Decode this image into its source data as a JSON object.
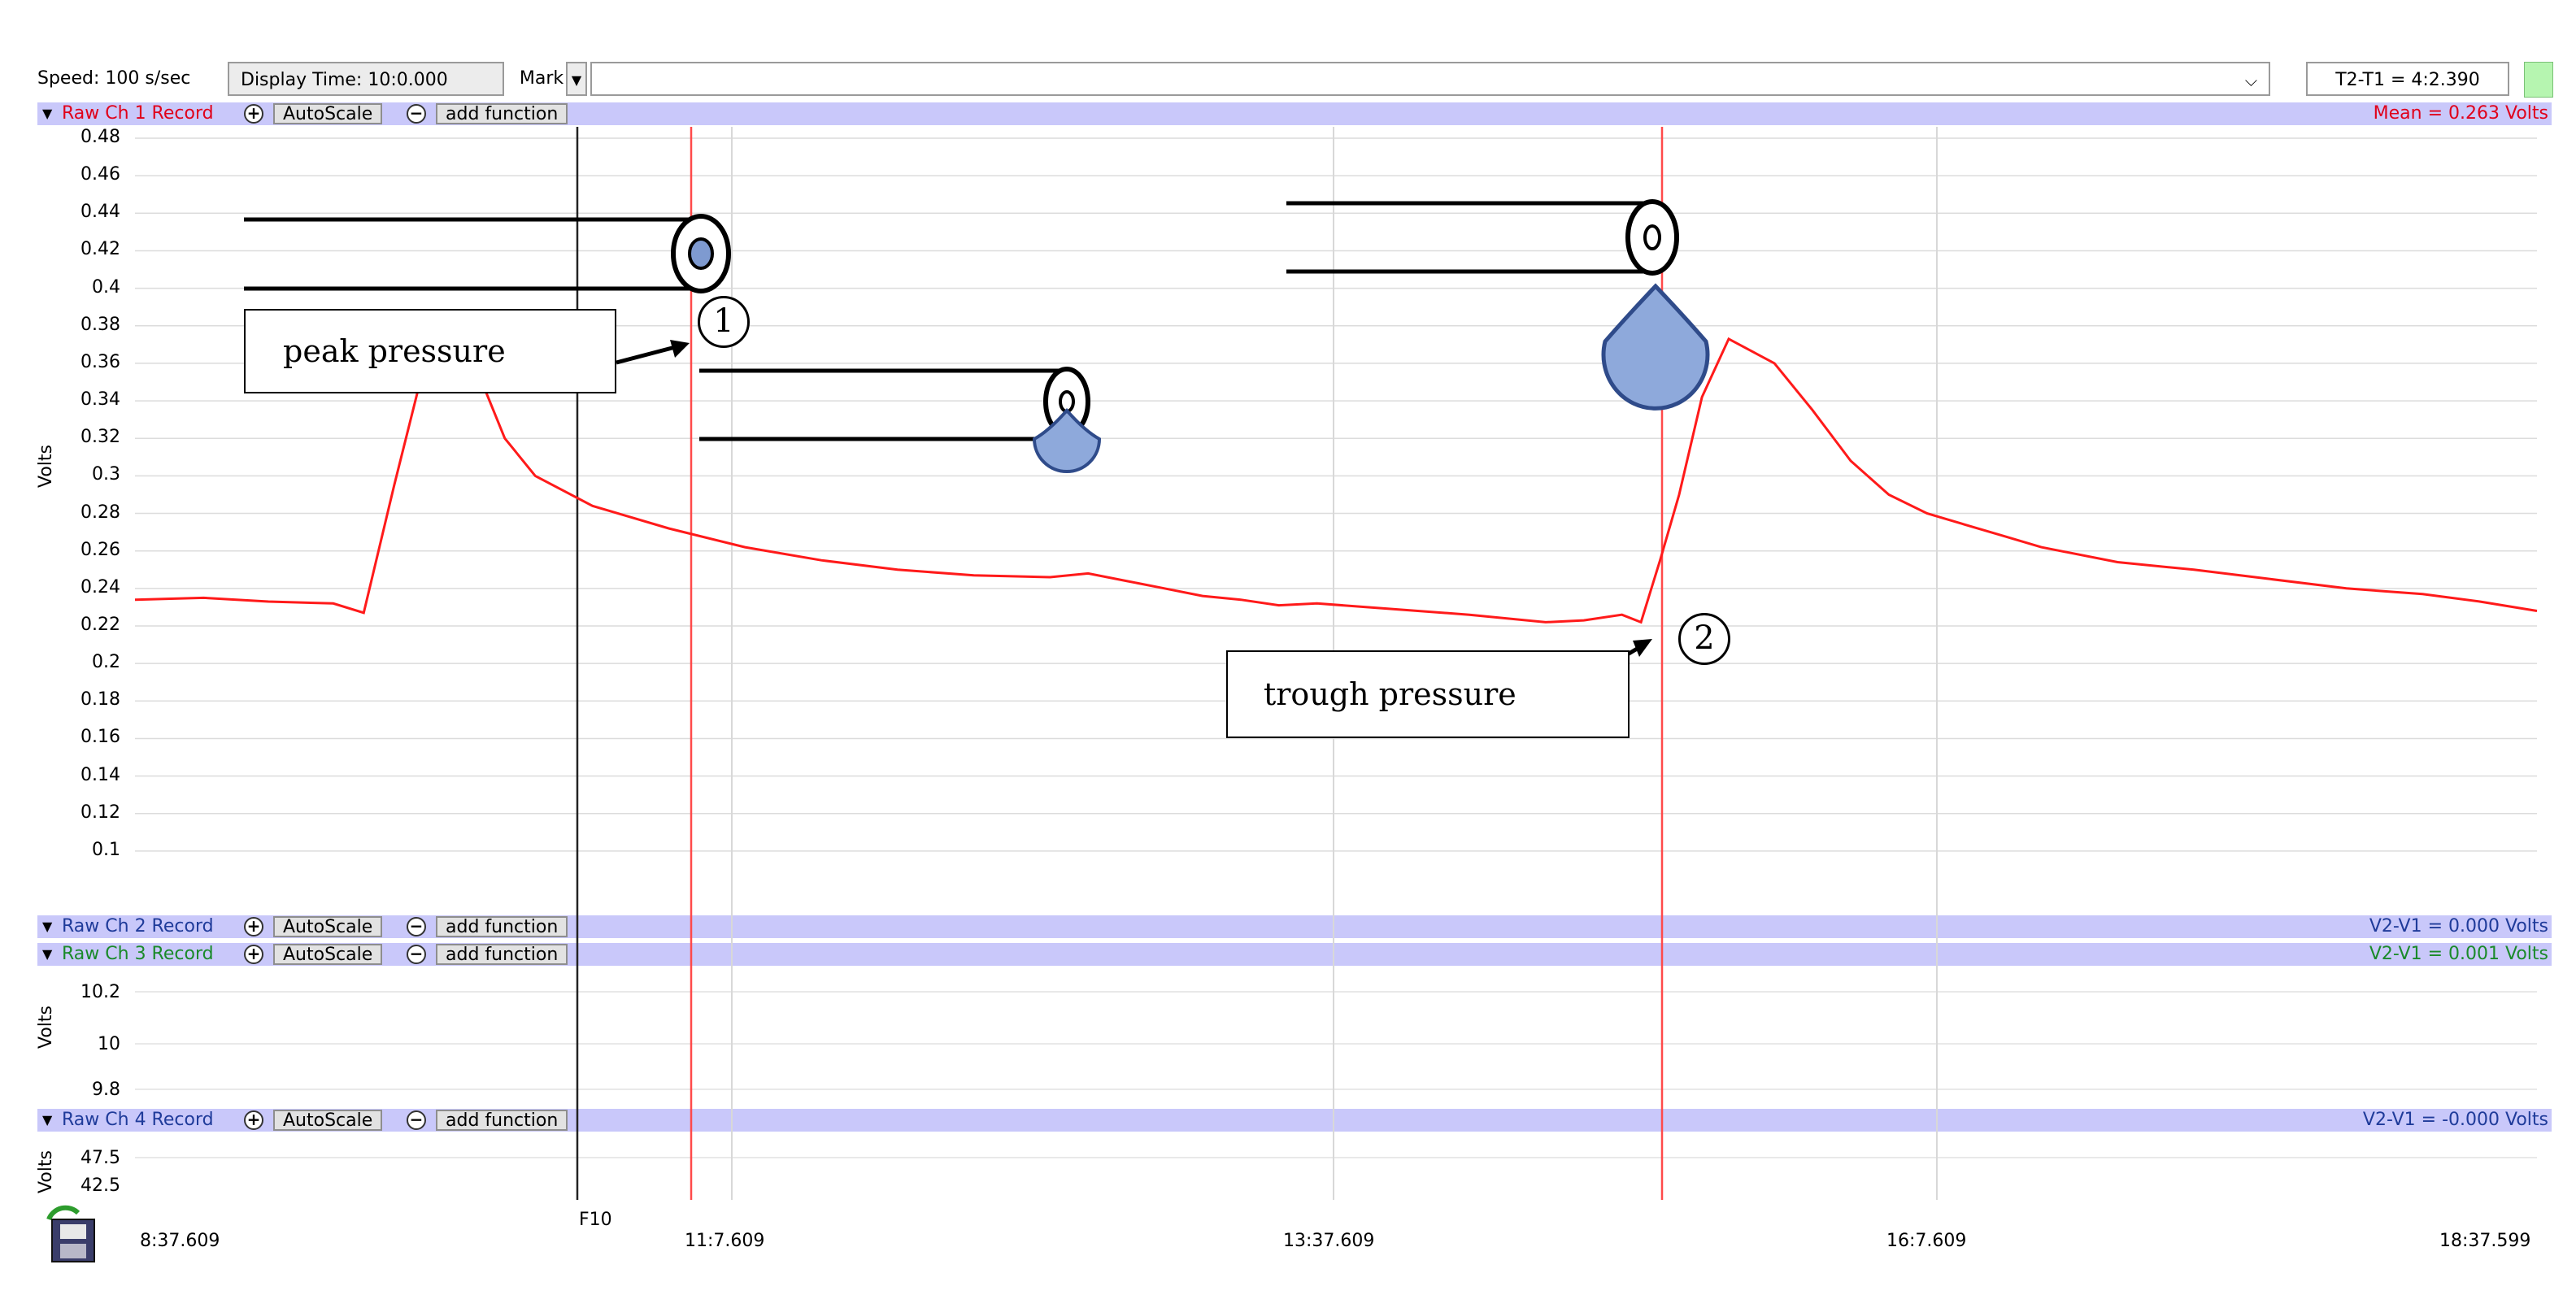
{
  "toolbar": {
    "speed": "Speed: 100 s/sec",
    "display_time": "Display Time: 10:0.000",
    "mark": "Mark",
    "mark_dropdown_icon": "caret-down-icon",
    "comment_dropdown_icon": "chevron-down-icon",
    "t2t1": "T2-T1 = 4:2.390",
    "status_color": "#b6f5b0"
  },
  "channels": [
    {
      "label": "Raw Ch 1 Record",
      "label_color": "#e0001a",
      "autoscale": "AutoScale",
      "add_function": "add function",
      "readout": "Mean = 0.263 Volts",
      "readout_color": "#e0001a"
    },
    {
      "label": "Raw Ch 2 Record",
      "label_color": "#1f3b9a",
      "autoscale": "AutoScale",
      "add_function": "add function",
      "readout": "V2-V1 = 0.000 Volts",
      "readout_color": "#1f3b9a"
    },
    {
      "label": "Raw Ch 3 Record",
      "label_color": "#1a8a2a",
      "autoscale": "AutoScale",
      "add_function": "add function",
      "readout": "V2-V1 = 0.001 Volts",
      "readout_color": "#1a8a2a"
    },
    {
      "label": "Raw Ch 4 Record",
      "label_color": "#1f3b9a",
      "autoscale": "AutoScale",
      "add_function": "add function",
      "readout": "V2-V1 = -0.000 Volts",
      "readout_color": "#1f3b9a"
    }
  ],
  "ch1_axis": {
    "ylabel": "Volts",
    "ticks": [
      "0.48",
      "0.46",
      "0.44",
      "0.42",
      "0.4",
      "0.38",
      "0.36",
      "0.34",
      "0.32",
      "0.3",
      "0.28",
      "0.26",
      "0.24",
      "0.22",
      "0.2",
      "0.18",
      "0.16",
      "0.14",
      "0.12",
      "0.1"
    ]
  },
  "ch3_axis": {
    "ylabel": "Volts",
    "ticks": [
      "10.2",
      "10",
      "9.8"
    ]
  },
  "ch4_axis": {
    "ylabel": "Volts",
    "ticks": [
      "47.5",
      "42.5"
    ]
  },
  "time_axis": {
    "labels": [
      "8:37.609",
      "11:7.609",
      "13:37.609",
      "16:7.609",
      "18:37.599"
    ],
    "marker": "F10"
  },
  "annotations": {
    "peak_label": "peak pressure",
    "trough_label": "trough pressure",
    "peak_number": "①",
    "trough_number": "②"
  },
  "colors": {
    "trace": "#ff1a1a",
    "drop": "#8ea9db",
    "drop_border": "#2f4b8a",
    "channel_bar": "#c9c8fa"
  },
  "chart_data": {
    "type": "line",
    "series": [
      {
        "name": "Raw Ch 1 Record",
        "x": [
          0,
          18,
          35,
          52,
          60,
          68,
          75,
          83,
          90,
          97,
          105,
          120,
          140,
          160,
          180,
          200,
          220,
          240,
          250,
          260,
          270,
          280,
          290,
          300,
          310,
          330,
          350,
          370,
          380,
          390,
          395,
          400,
          405,
          411,
          418,
          430,
          440,
          450,
          460,
          470,
          480,
          490,
          500,
          520,
          540,
          560,
          580,
          600,
          615,
          630
        ],
        "values": [
          0.234,
          0.235,
          0.233,
          0.232,
          0.227,
          0.295,
          0.352,
          0.37,
          0.355,
          0.32,
          0.3,
          0.284,
          0.272,
          0.262,
          0.255,
          0.25,
          0.247,
          0.246,
          0.248,
          0.244,
          0.24,
          0.236,
          0.234,
          0.231,
          0.232,
          0.229,
          0.226,
          0.222,
          0.223,
          0.226,
          0.222,
          0.255,
          0.29,
          0.342,
          0.373,
          0.36,
          0.335,
          0.308,
          0.29,
          0.28,
          0.274,
          0.268,
          0.262,
          0.254,
          0.25,
          0.245,
          0.24,
          0.237,
          0.233,
          0.228
        ]
      }
    ],
    "ylim": [
      0.09,
      0.48
    ],
    "ylabel": "Volts"
  }
}
